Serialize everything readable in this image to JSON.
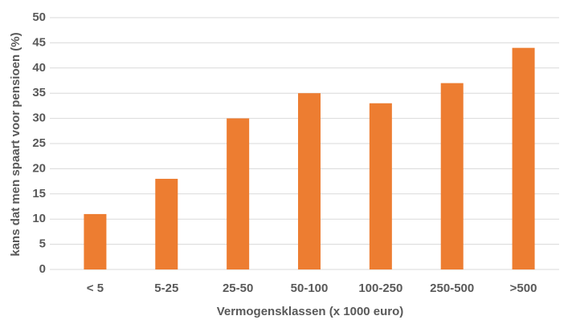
{
  "chart_data": {
    "type": "bar",
    "categories": [
      "< 5",
      "5-25",
      "25-50",
      "50-100",
      "100-250",
      "250-500",
      ">500"
    ],
    "values": [
      11,
      18,
      30,
      35,
      33,
      37,
      44
    ],
    "color": "#ed7d31",
    "x_label": "Vermogensklassen (x 1000 euro)",
    "y_label": "kans dat men spaart voor pensioen (%)",
    "ylim": [
      0,
      50
    ],
    "yticks": [
      0,
      5,
      10,
      15,
      20,
      25,
      30,
      35,
      40,
      45,
      50
    ],
    "grid": true
  }
}
